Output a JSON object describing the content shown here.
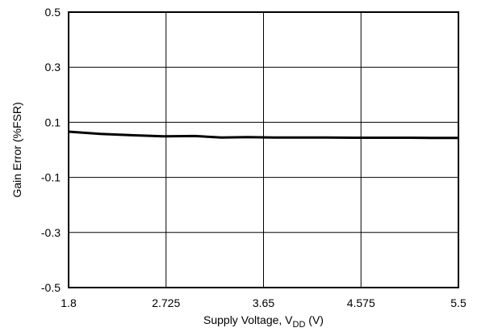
{
  "chart_data": {
    "type": "line",
    "title": "",
    "xlabel": {
      "main": "Supply Voltage, V",
      "sub": "DD",
      "suffix": " (V)"
    },
    "ylabel": "Gain Error (%FSR)",
    "xlim": [
      1.8,
      5.5
    ],
    "ylim": [
      -0.5,
      0.5
    ],
    "x_ticks": [
      1.8,
      2.725,
      3.65,
      4.575,
      5.5
    ],
    "x_tick_labels": [
      "1.8",
      "2.725",
      "3.65",
      "4.575",
      "5.5"
    ],
    "y_ticks": [
      0.5,
      0.3,
      0.1,
      -0.1,
      -0.3,
      -0.5
    ],
    "y_tick_labels": [
      "0.5",
      "0.3",
      "0.1",
      "-0.1",
      "-0.3",
      "-0.5"
    ],
    "grid": true,
    "series": [
      {
        "x": [
          1.8,
          2.1,
          2.4,
          2.7,
          3.0,
          3.25,
          3.5,
          3.75,
          4.0,
          4.25,
          4.5,
          4.75,
          5.0,
          5.25,
          5.5
        ],
        "y": [
          0.066,
          0.058,
          0.053,
          0.049,
          0.05,
          0.045,
          0.046,
          0.045,
          0.045,
          0.045,
          0.044,
          0.044,
          0.044,
          0.043,
          0.043
        ]
      }
    ],
    "colors": {
      "line": "#000000",
      "grid": "#000000",
      "frame": "#000000"
    }
  }
}
